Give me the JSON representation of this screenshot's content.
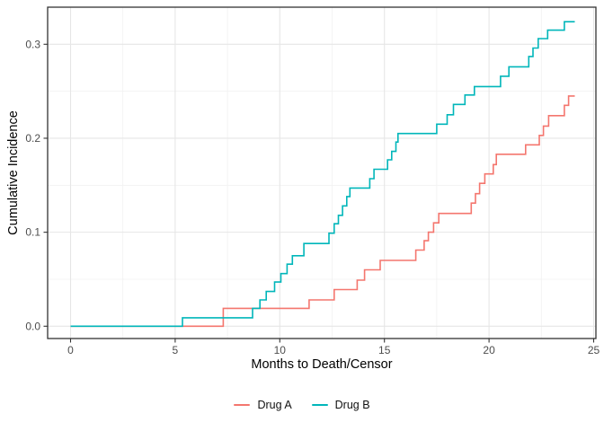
{
  "figure": {
    "background_color": "#ffffff",
    "panel_border_color": "#333333",
    "grid_major_color": "#e6e6e6",
    "grid_minor_color": "#f1f1f1"
  },
  "chart_data": {
    "type": "line",
    "subtype": "step-function cumulative incidence curves (Kaplan-Meier style)",
    "title": "",
    "xlabel": "Months to Death/Censor",
    "ylabel": "Cumulative Incidence",
    "xlim": [
      -1.1,
      26.1
    ],
    "ylim": [
      -0.013,
      0.338
    ],
    "x_major_ticks": [
      0,
      5,
      10,
      15,
      20,
      25
    ],
    "x_tick_labels": [
      "0",
      "5",
      "10",
      "15",
      "20",
      "25"
    ],
    "x_minor_ticks": [
      2.5,
      7.5,
      12.5,
      17.5,
      22.5
    ],
    "y_major_ticks": [
      0.0,
      0.1,
      0.2,
      0.3
    ],
    "y_tick_labels": [
      "0.0",
      "0.1",
      "0.2",
      "0.3"
    ],
    "y_minor_ticks": [
      0.05,
      0.15,
      0.25
    ],
    "grid": "major and minor, light gray on white panel",
    "legend_position": "bottom-center",
    "series": [
      {
        "name": "Drug A",
        "color": "#F4766E",
        "points": [
          [
            0,
            0
          ],
          [
            7.3,
            0.019
          ],
          [
            11.4,
            0.028
          ],
          [
            12.6,
            0.039
          ],
          [
            13.7,
            0.049
          ],
          [
            14.05,
            0.06
          ],
          [
            14.8,
            0.07
          ],
          [
            16.5,
            0.081
          ],
          [
            16.9,
            0.091
          ],
          [
            17.1,
            0.1
          ],
          [
            17.35,
            0.11
          ],
          [
            17.6,
            0.12
          ],
          [
            19.15,
            0.131
          ],
          [
            19.35,
            0.141
          ],
          [
            19.55,
            0.152
          ],
          [
            19.8,
            0.162
          ],
          [
            20.2,
            0.172
          ],
          [
            20.35,
            0.183
          ],
          [
            21.75,
            0.193
          ],
          [
            22.4,
            0.203
          ],
          [
            22.6,
            0.213
          ],
          [
            22.85,
            0.224
          ],
          [
            23.6,
            0.235
          ],
          [
            23.8,
            0.245
          ],
          [
            24.1,
            0.245
          ]
        ]
      },
      {
        "name": "Drug B",
        "color": "#00B6BA",
        "points": [
          [
            0,
            0
          ],
          [
            5.35,
            0.009
          ],
          [
            8.7,
            0.019
          ],
          [
            9.05,
            0.028
          ],
          [
            9.35,
            0.037
          ],
          [
            9.75,
            0.047
          ],
          [
            10.05,
            0.056
          ],
          [
            10.35,
            0.066
          ],
          [
            10.6,
            0.075
          ],
          [
            11.15,
            0.088
          ],
          [
            12.35,
            0.099
          ],
          [
            12.6,
            0.109
          ],
          [
            12.8,
            0.118
          ],
          [
            13.0,
            0.128
          ],
          [
            13.2,
            0.138
          ],
          [
            13.35,
            0.147
          ],
          [
            14.3,
            0.157
          ],
          [
            14.5,
            0.167
          ],
          [
            15.15,
            0.177
          ],
          [
            15.35,
            0.186
          ],
          [
            15.55,
            0.196
          ],
          [
            15.65,
            0.205
          ],
          [
            17.5,
            0.215
          ],
          [
            18.0,
            0.225
          ],
          [
            18.3,
            0.236
          ],
          [
            18.85,
            0.246
          ],
          [
            19.3,
            0.255
          ],
          [
            20.55,
            0.266
          ],
          [
            20.95,
            0.276
          ],
          [
            21.9,
            0.287
          ],
          [
            22.1,
            0.296
          ],
          [
            22.35,
            0.306
          ],
          [
            22.8,
            0.315
          ],
          [
            23.6,
            0.324
          ],
          [
            24.1,
            0.324
          ]
        ]
      }
    ]
  },
  "legend": {
    "items": [
      {
        "label": "Drug A",
        "color": "#F4766E"
      },
      {
        "label": "Drug B",
        "color": "#00B6BA"
      }
    ]
  }
}
